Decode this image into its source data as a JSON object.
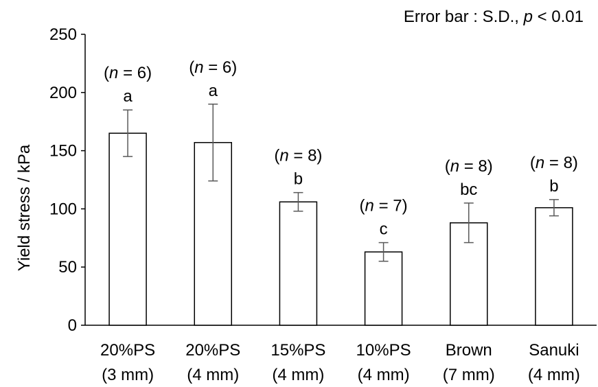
{
  "chart_data": {
    "type": "bar",
    "annotation": {
      "prefix": "Error bar : S.D., ",
      "p_symbol": "p",
      "suffix": " < 0.01"
    },
    "ylabel": "Yield stress / kPa",
    "xlabel": "",
    "ylim": [
      0,
      250
    ],
    "yticks": [
      "0",
      "50",
      "100",
      "150",
      "200",
      "250"
    ],
    "error_bar": "S.D.",
    "categories": [
      {
        "name": "20%PS",
        "sub": "(3 mm)"
      },
      {
        "name": "20%PS",
        "sub": "(4 mm)"
      },
      {
        "name": "15%PS",
        "sub": "(4 mm)"
      },
      {
        "name": "10%PS",
        "sub": "(4 mm)"
      },
      {
        "name": "Brown",
        "sub": "(7 mm)"
      },
      {
        "name": "Sanuki",
        "sub": "(4 mm)"
      }
    ],
    "values": [
      165,
      157,
      106,
      63,
      88,
      101
    ],
    "errors": [
      20,
      33,
      8,
      8,
      17,
      7
    ],
    "n_labels": [
      "(n = 6)",
      "(n = 6)",
      "(n = 8)",
      "(n = 7)",
      "(n = 8)",
      "(n = 8)"
    ],
    "n_values": [
      "6",
      "6",
      "8",
      "7",
      "8",
      "8"
    ],
    "groups": [
      "a",
      "a",
      "b",
      "c",
      "bc",
      "b"
    ],
    "grid": false,
    "colors": {
      "bar_fill": "#ffffff",
      "bar_stroke": "#000000",
      "error": "#595959",
      "axis": "#000000"
    }
  }
}
